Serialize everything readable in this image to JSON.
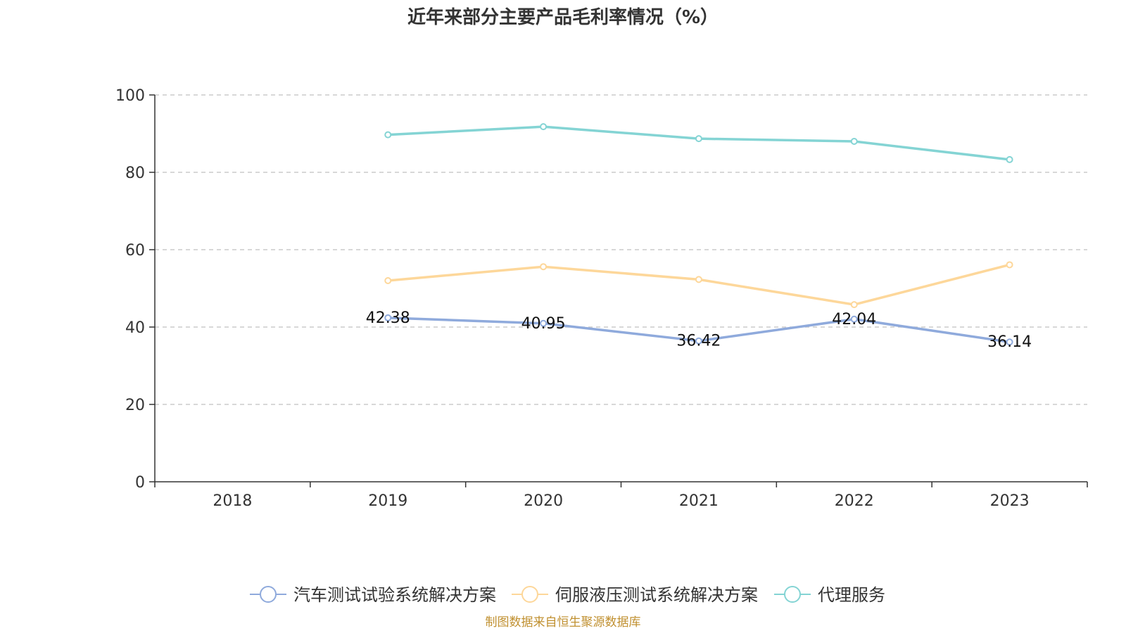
{
  "chart_data": {
    "type": "line",
    "title": "近年来部分主要产品毛利率情况（%）",
    "categories": [
      "2018",
      "2019",
      "2020",
      "2021",
      "2022",
      "2023"
    ],
    "ylim": [
      0,
      100
    ],
    "yticks": [
      0,
      20,
      40,
      60,
      80,
      100
    ],
    "grid": "horizontal dashed",
    "legend_position": "bottom",
    "series": [
      {
        "name": "汽车测试试验系统解决方案",
        "color": "#8faadc",
        "values": [
          null,
          42.38,
          40.95,
          36.42,
          42.04,
          36.14
        ],
        "data_labels": [
          null,
          "42.38",
          "40.95",
          "36.42",
          "42.04",
          "36.14"
        ]
      },
      {
        "name": "伺服液压测试系统解决方案",
        "color": "#fdd79a",
        "values": [
          null,
          52.0,
          55.6,
          52.3,
          45.8,
          56.1
        ]
      },
      {
        "name": "代理服务",
        "color": "#84d4d4",
        "values": [
          null,
          89.7,
          91.8,
          88.7,
          88.0,
          83.3
        ]
      }
    ]
  },
  "source": "制图数据来自恒生聚源数据库"
}
